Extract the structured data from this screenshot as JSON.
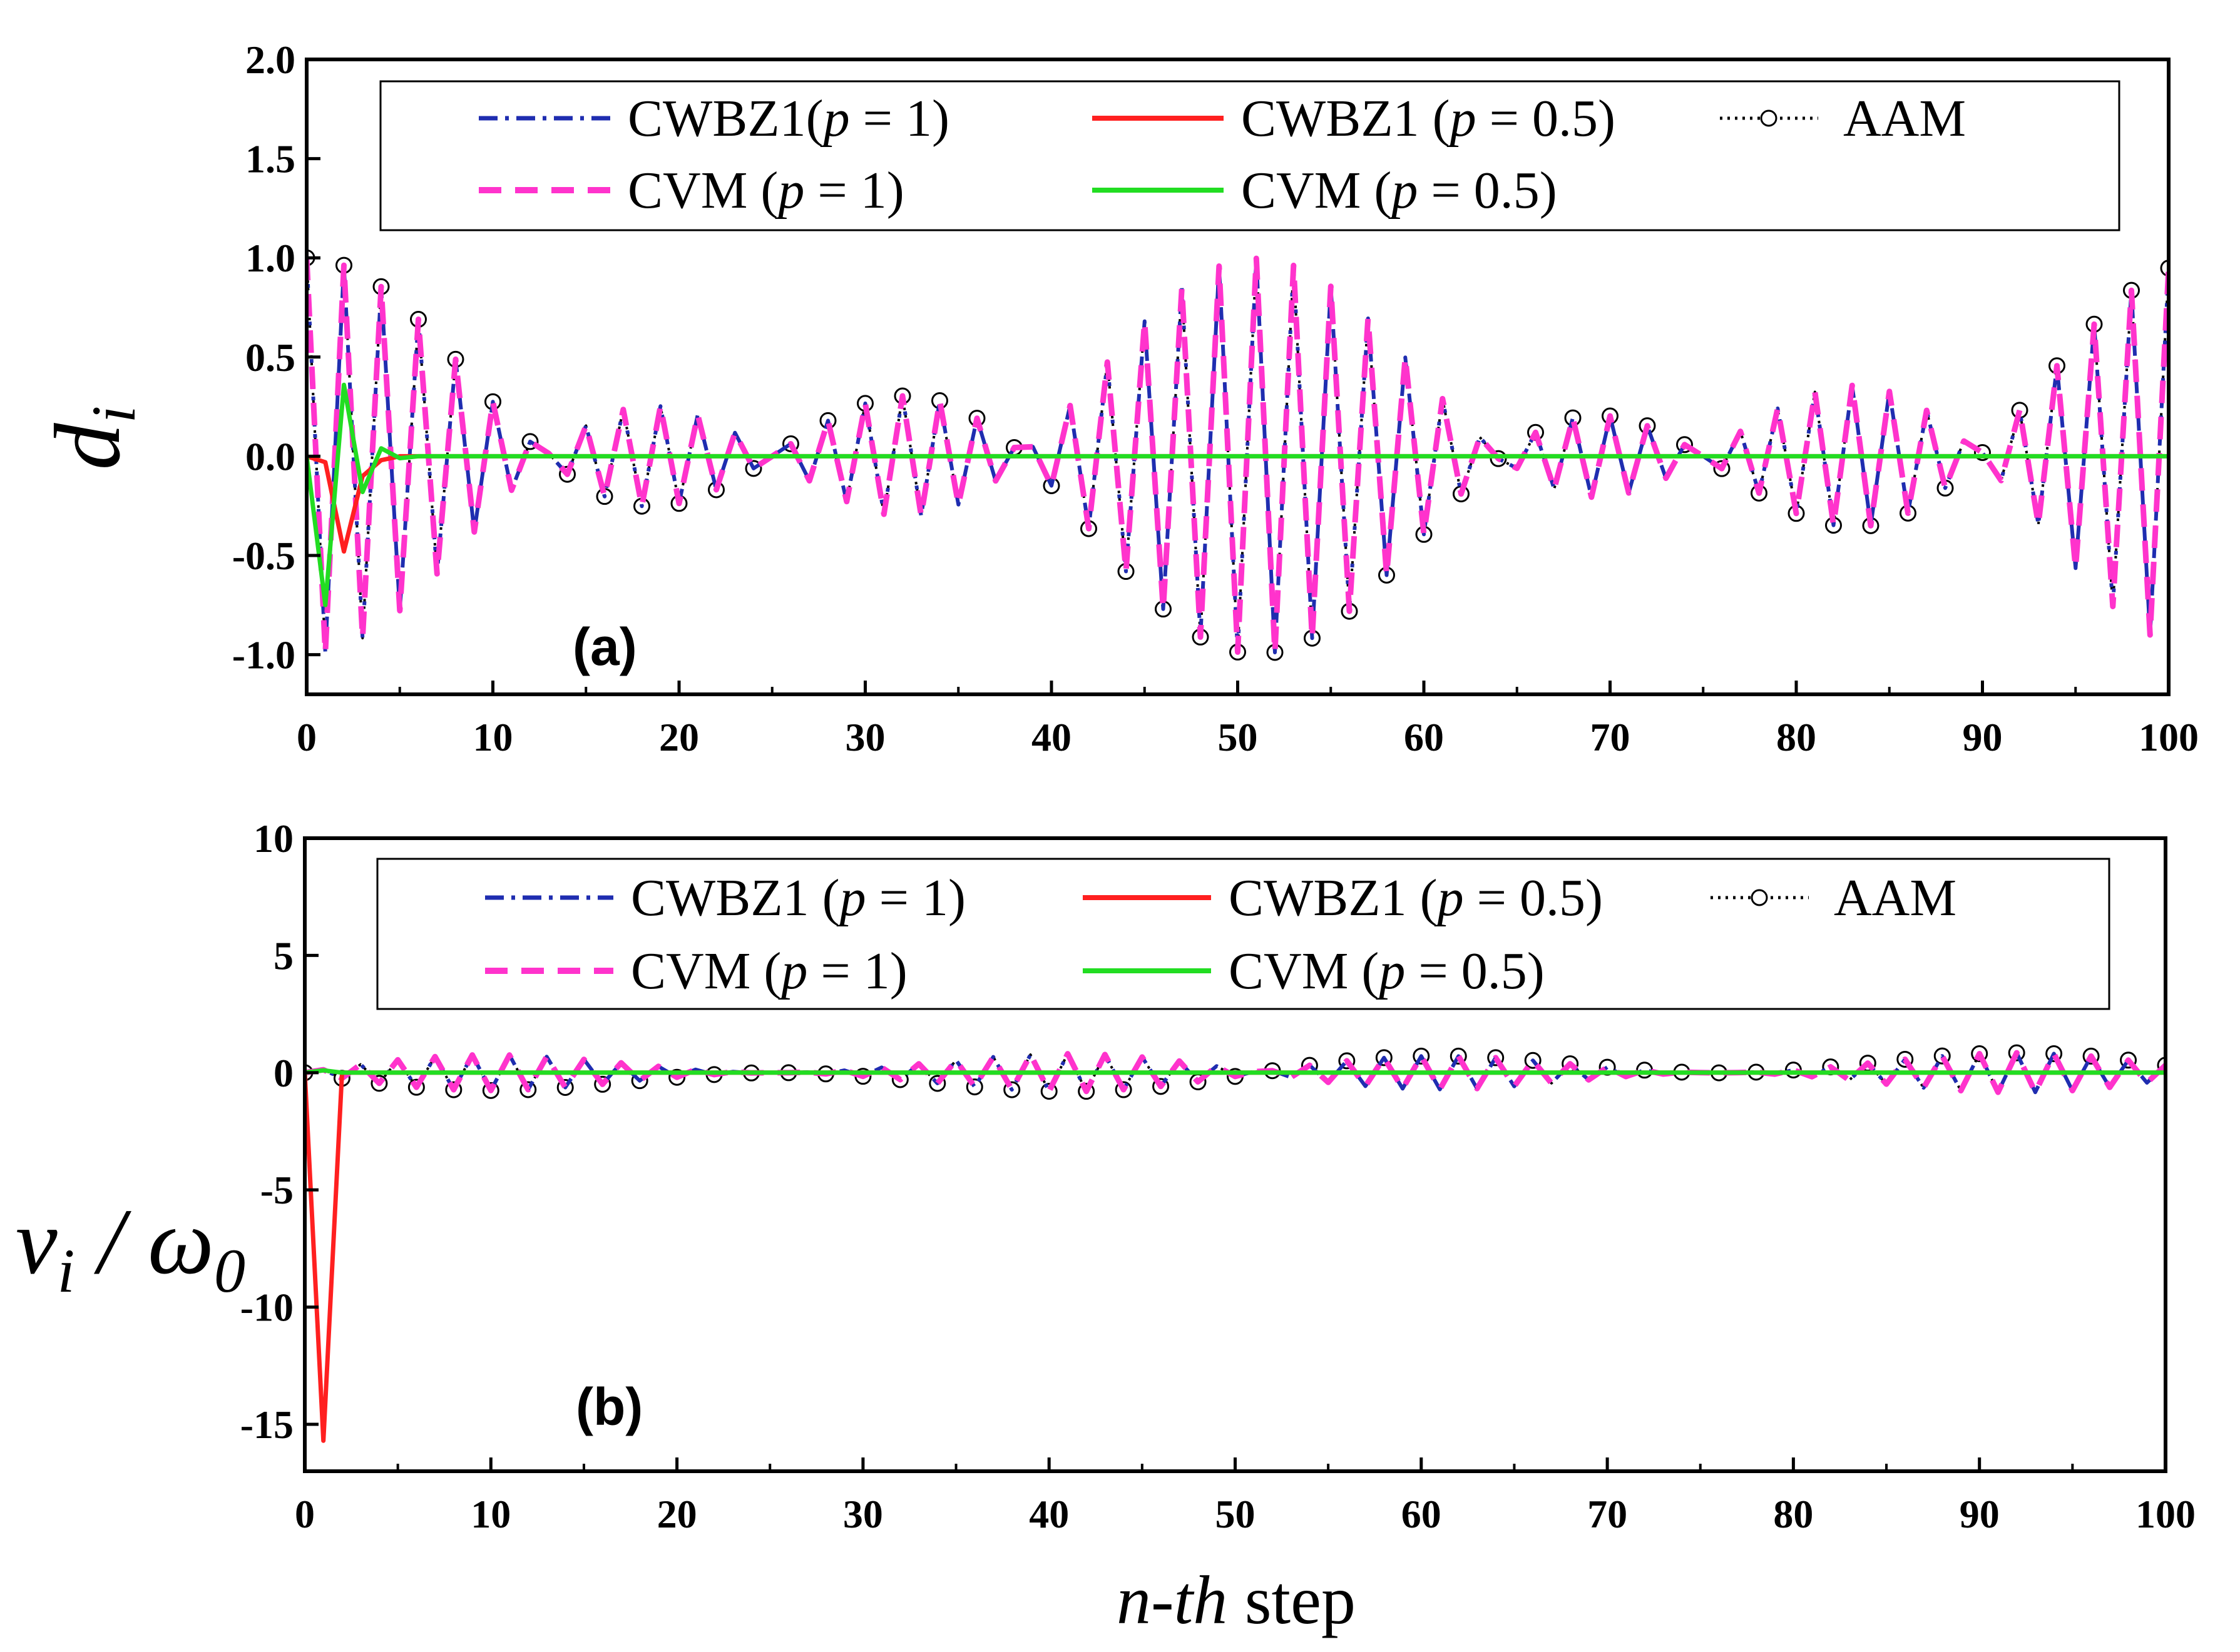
{
  "chart_data": [
    {
      "type": "line",
      "panel_label": "(a)",
      "ylabel_main": "d",
      "ylabel_sub": "i",
      "xlim": [
        0,
        100
      ],
      "ylim": [
        -1.2,
        2.0
      ],
      "xticks": [
        "0",
        "10",
        "20",
        "30",
        "40",
        "50",
        "60",
        "70",
        "80",
        "90",
        "100"
      ],
      "yticks": [
        "2.0",
        "1.5",
        "1.0",
        "0.5",
        "0.0",
        "-0.5",
        "-1.0"
      ],
      "ytick_values": [
        2.0,
        1.5,
        1.0,
        0.5,
        0.0,
        -0.5,
        -1.0
      ],
      "legend_placement": "top",
      "series": [
        {
          "name": "CWBZ1(p = 1)",
          "parts": [
            "CWBZ1(",
            "p",
            " = 1)"
          ],
          "color": "#1f2db0",
          "style": "dashdot",
          "model": "cos",
          "amp": 1.0,
          "period_steps": 2.0811,
          "beat_period": 50
        },
        {
          "name": "CWBZ1 (p = 0.5)",
          "parts": [
            "CWBZ1 (",
            "p",
            " = 0.5)"
          ],
          "color": "#ff2020",
          "style": "solid",
          "points": [
            [
              0,
              0
            ],
            [
              1,
              -0.03
            ],
            [
              2,
              -0.48
            ],
            [
              3,
              -0.1
            ],
            [
              4,
              -0.02
            ],
            [
              5,
              0
            ],
            [
              100,
              0
            ]
          ]
        },
        {
          "name": "AAM",
          "parts": [
            "AAM"
          ],
          "color": "#000000",
          "style": "dotted-circle",
          "model": "cos",
          "amp": 1.0,
          "period_steps": 2.0811,
          "beat_period": 50
        },
        {
          "name": "CVM (p = 1)",
          "parts": [
            "CVM (",
            "p",
            " = 1)"
          ],
          "color": "#ff33cc",
          "style": "dash",
          "model": "cos",
          "amp": 1.0,
          "period_steps": 2.0811,
          "beat_period": 50
        },
        {
          "name": "CVM (p = 0.5)",
          "parts": [
            "CVM (",
            "p",
            " = 0.5)"
          ],
          "color": "#22dd22",
          "style": "solid",
          "points": [
            [
              0,
              0
            ],
            [
              1,
              -0.75
            ],
            [
              2,
              0.36
            ],
            [
              3,
              -0.18
            ],
            [
              4,
              0.04
            ],
            [
              5,
              -0.01
            ],
            [
              6,
              0
            ],
            [
              100,
              0
            ]
          ]
        }
      ]
    },
    {
      "type": "line",
      "panel_label": "(b)",
      "ylabel_main": "v",
      "ylabel_sub": "i",
      "ylabel_slash": " / ω",
      "ylabel_sub2": "0",
      "xlabel_italic": "n-th",
      "xlabel_rest": " step",
      "xlim": [
        0,
        100
      ],
      "ylim": [
        -17,
        10
      ],
      "xticks": [
        "0",
        "10",
        "20",
        "30",
        "40",
        "50",
        "60",
        "70",
        "80",
        "90",
        "100"
      ],
      "yticks": [
        "10",
        "5",
        "0",
        "-5",
        "-10",
        "-15"
      ],
      "ytick_values": [
        10,
        5,
        0,
        -5,
        -10,
        -15
      ],
      "legend_placement": "top",
      "series": [
        {
          "name": "CWBZ1 (p = 1)",
          "parts": [
            "CWBZ1 (",
            "p",
            " = 1)"
          ],
          "color": "#1f2db0",
          "style": "dashdot",
          "model": "sin",
          "amp": 1.0,
          "period_steps": 2.0811,
          "beat_period": 50
        },
        {
          "name": "CWBZ1 (p = 0.5)",
          "parts": [
            "CWBZ1 (",
            "p",
            " = 0.5)"
          ],
          "color": "#ff2020",
          "style": "solid",
          "points": [
            [
              0,
              0
            ],
            [
              1,
              -15.7
            ],
            [
              2,
              0
            ],
            [
              100,
              0
            ]
          ]
        },
        {
          "name": "AAM",
          "parts": [
            "AAM"
          ],
          "color": "#000000",
          "style": "dotted-circle",
          "model": "sin",
          "amp": 1.0,
          "period_steps": 2.0811,
          "beat_period": 50
        },
        {
          "name": "CVM (p = 1)",
          "parts": [
            "CVM (",
            "p",
            " = 1)"
          ],
          "color": "#ff33cc",
          "style": "dash",
          "model": "sin",
          "amp": 1.0,
          "period_steps": 2.0811,
          "beat_period": 50
        },
        {
          "name": "CVM (p = 0.5)",
          "parts": [
            "CVM (",
            "p",
            " = 0.5)"
          ],
          "color": "#22dd22",
          "style": "solid",
          "points": [
            [
              0,
              0
            ],
            [
              1,
              0.1
            ],
            [
              2,
              0
            ],
            [
              100,
              0
            ]
          ]
        }
      ]
    }
  ]
}
